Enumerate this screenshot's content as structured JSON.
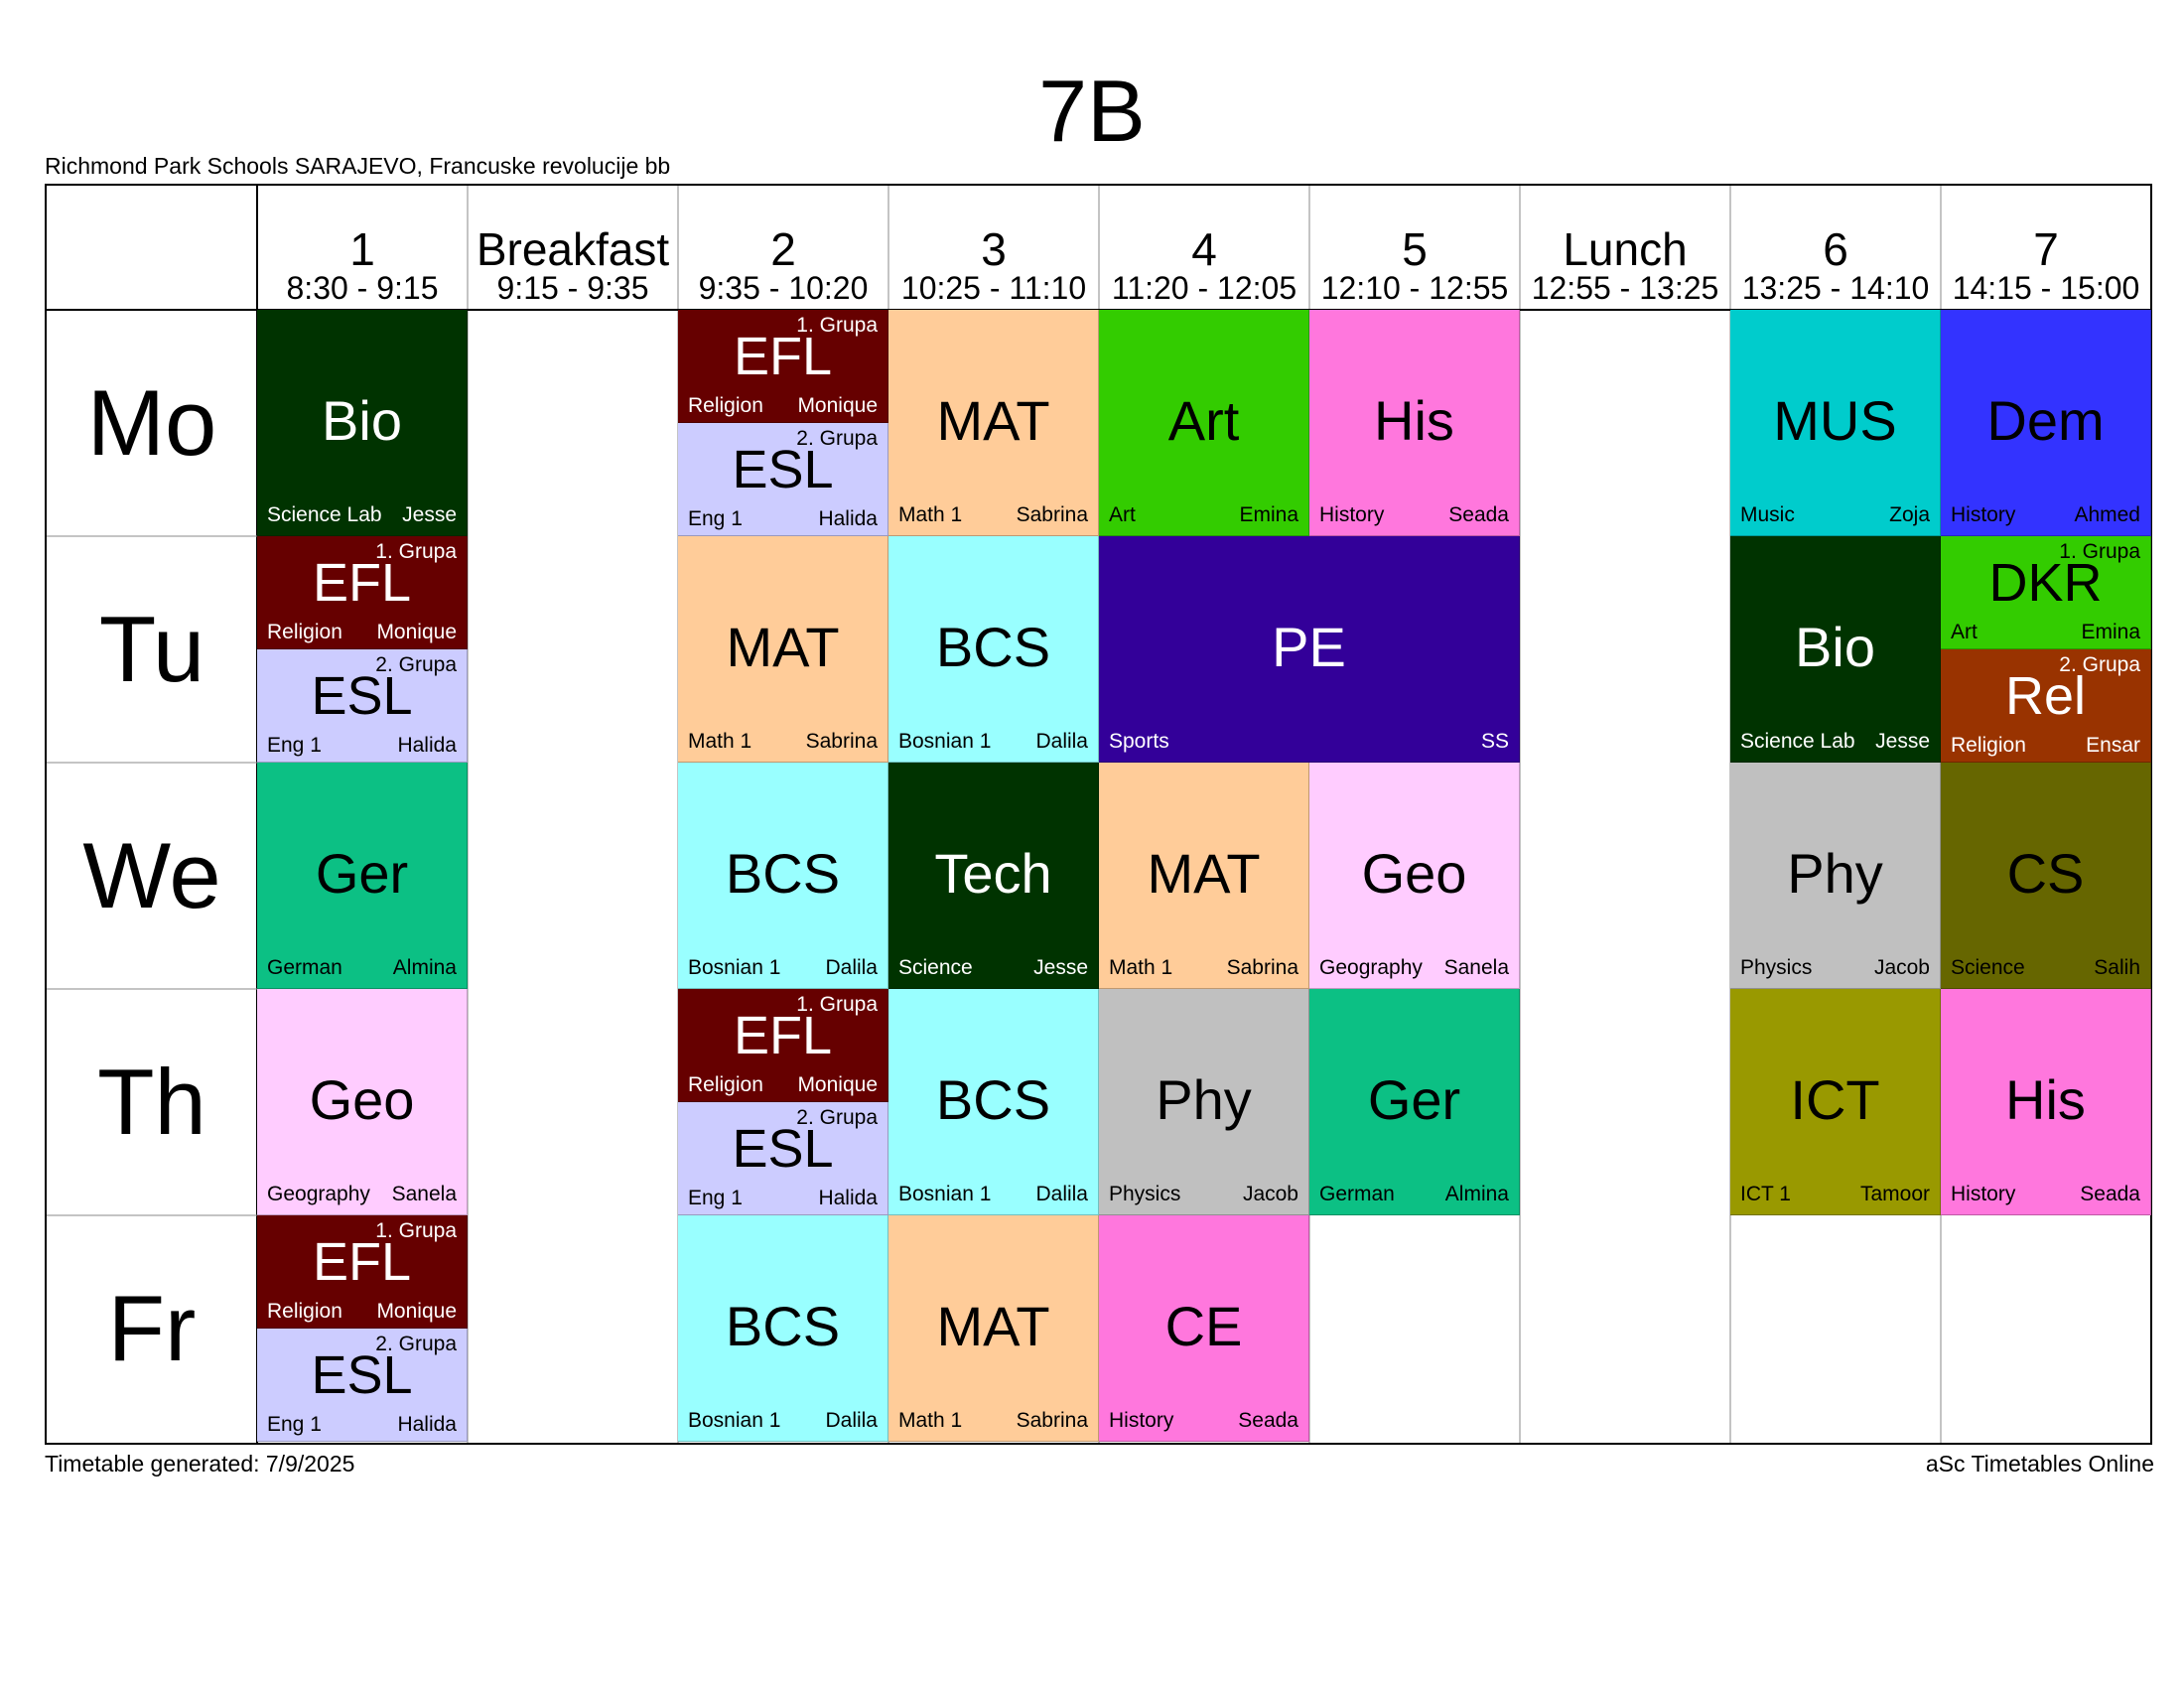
{
  "title": "7B",
  "school": "Richmond Park Schools SARAJEVO, Francuske revolucije bb",
  "footer": {
    "generated": "Timetable generated: 7/9/2025",
    "brand": "aSc Timetables Online"
  },
  "columns": [
    {
      "label": "1",
      "time": "8:30 - 9:15"
    },
    {
      "label": "Breakfast",
      "time": "9:15 - 9:35"
    },
    {
      "label": "2",
      "time": "9:35 - 10:20"
    },
    {
      "label": "3",
      "time": "10:25 - 11:10"
    },
    {
      "label": "4",
      "time": "11:20 - 12:05"
    },
    {
      "label": "5",
      "time": "12:10 - 12:55"
    },
    {
      "label": "Lunch",
      "time": "12:55 - 13:25"
    },
    {
      "label": "6",
      "time": "13:25 - 14:10"
    },
    {
      "label": "7",
      "time": "14:15 - 15:00"
    }
  ],
  "days": [
    "Mo",
    "Tu",
    "We",
    "Th",
    "Fr"
  ],
  "lessons": [
    {
      "day": 0,
      "col": 0,
      "span": 1,
      "half": null,
      "subject": "Bio",
      "room": "Science Lab",
      "teacher": "Jesse",
      "group": "",
      "color": "#003300",
      "text": "#ffffff"
    },
    {
      "day": 0,
      "col": 2,
      "span": 1,
      "half": "top",
      "subject": "EFL",
      "room": "Religion",
      "teacher": "Monique",
      "group": "1. Grupa",
      "color": "#660000",
      "text": "#ffffff"
    },
    {
      "day": 0,
      "col": 2,
      "span": 1,
      "half": "bottom",
      "subject": "ESL",
      "room": "Eng 1",
      "teacher": "Halida",
      "group": "2. Grupa",
      "color": "#ccccff",
      "text": "#000000"
    },
    {
      "day": 0,
      "col": 3,
      "span": 1,
      "half": null,
      "subject": "MAT",
      "room": "Math 1",
      "teacher": "Sabrina",
      "group": "",
      "color": "#ffcc99",
      "text": "#000000"
    },
    {
      "day": 0,
      "col": 4,
      "span": 1,
      "half": null,
      "subject": "Art",
      "room": "Art",
      "teacher": "Emina",
      "group": "",
      "color": "#33cc00",
      "text": "#000000"
    },
    {
      "day": 0,
      "col": 5,
      "span": 1,
      "half": null,
      "subject": "His",
      "room": "History",
      "teacher": "Seada",
      "group": "",
      "color": "#ff77dd",
      "text": "#000000"
    },
    {
      "day": 0,
      "col": 7,
      "span": 1,
      "half": null,
      "subject": "MUS",
      "room": "Music",
      "teacher": "Zoja",
      "group": "",
      "color": "#00cccc",
      "text": "#000000"
    },
    {
      "day": 0,
      "col": 8,
      "span": 1,
      "half": null,
      "subject": "Dem",
      "room": "History",
      "teacher": "Ahmed",
      "group": "",
      "color": "#3333ff",
      "text": "#000000"
    },
    {
      "day": 1,
      "col": 0,
      "span": 1,
      "half": "top",
      "subject": "EFL",
      "room": "Religion",
      "teacher": "Monique",
      "group": "1. Grupa",
      "color": "#660000",
      "text": "#ffffff"
    },
    {
      "day": 1,
      "col": 0,
      "span": 1,
      "half": "bottom",
      "subject": "ESL",
      "room": "Eng 1",
      "teacher": "Halida",
      "group": "2. Grupa",
      "color": "#ccccff",
      "text": "#000000"
    },
    {
      "day": 1,
      "col": 2,
      "span": 1,
      "half": null,
      "subject": "MAT",
      "room": "Math 1",
      "teacher": "Sabrina",
      "group": "",
      "color": "#ffcc99",
      "text": "#000000"
    },
    {
      "day": 1,
      "col": 3,
      "span": 1,
      "half": null,
      "subject": "BCS",
      "room": "Bosnian 1",
      "teacher": "Dalila",
      "group": "",
      "color": "#99ffff",
      "text": "#000000"
    },
    {
      "day": 1,
      "col": 4,
      "span": 2,
      "half": null,
      "subject": "PE",
      "room": "Sports",
      "teacher": "SS",
      "group": "",
      "color": "#330099",
      "text": "#ffffff"
    },
    {
      "day": 1,
      "col": 7,
      "span": 1,
      "half": null,
      "subject": "Bio",
      "room": "Science Lab",
      "teacher": "Jesse",
      "group": "",
      "color": "#003300",
      "text": "#ffffff"
    },
    {
      "day": 1,
      "col": 8,
      "span": 1,
      "half": "top",
      "subject": "DKR",
      "room": "Art",
      "teacher": "Emina",
      "group": "1. Grupa",
      "color": "#33cc00",
      "text": "#000000"
    },
    {
      "day": 1,
      "col": 8,
      "span": 1,
      "half": "bottom",
      "subject": "Rel",
      "room": "Religion",
      "teacher": "Ensar",
      "group": "2. Grupa",
      "color": "#993300",
      "text": "#ffffff"
    },
    {
      "day": 2,
      "col": 0,
      "span": 1,
      "half": null,
      "subject": "Ger",
      "room": "German",
      "teacher": "Almina",
      "group": "",
      "color": "#0cc084",
      "text": "#000000"
    },
    {
      "day": 2,
      "col": 2,
      "span": 1,
      "half": null,
      "subject": "BCS",
      "room": "Bosnian 1",
      "teacher": "Dalila",
      "group": "",
      "color": "#99ffff",
      "text": "#000000"
    },
    {
      "day": 2,
      "col": 3,
      "span": 1,
      "half": null,
      "subject": "Tech",
      "room": "Science",
      "teacher": "Jesse",
      "group": "",
      "color": "#003300",
      "text": "#ffffff"
    },
    {
      "day": 2,
      "col": 4,
      "span": 1,
      "half": null,
      "subject": "MAT",
      "room": "Math 1",
      "teacher": "Sabrina",
      "group": "",
      "color": "#ffcc99",
      "text": "#000000"
    },
    {
      "day": 2,
      "col": 5,
      "span": 1,
      "half": null,
      "subject": "Geo",
      "room": "Geography",
      "teacher": "Sanela",
      "group": "",
      "color": "#ffccff",
      "text": "#000000"
    },
    {
      "day": 2,
      "col": 7,
      "span": 1,
      "half": null,
      "subject": "Phy",
      "room": "Physics",
      "teacher": "Jacob",
      "group": "",
      "color": "#c0c0c0",
      "text": "#000000"
    },
    {
      "day": 2,
      "col": 8,
      "span": 1,
      "half": null,
      "subject": "CS",
      "room": "Science",
      "teacher": "Salih",
      "group": "",
      "color": "#666600",
      "text": "#000000"
    },
    {
      "day": 3,
      "col": 0,
      "span": 1,
      "half": null,
      "subject": "Geo",
      "room": "Geography",
      "teacher": "Sanela",
      "group": "",
      "color": "#ffccff",
      "text": "#000000"
    },
    {
      "day": 3,
      "col": 2,
      "span": 1,
      "half": "top",
      "subject": "EFL",
      "room": "Religion",
      "teacher": "Monique",
      "group": "1. Grupa",
      "color": "#660000",
      "text": "#ffffff"
    },
    {
      "day": 3,
      "col": 2,
      "span": 1,
      "half": "bottom",
      "subject": "ESL",
      "room": "Eng 1",
      "teacher": "Halida",
      "group": "2. Grupa",
      "color": "#ccccff",
      "text": "#000000"
    },
    {
      "day": 3,
      "col": 3,
      "span": 1,
      "half": null,
      "subject": "BCS",
      "room": "Bosnian 1",
      "teacher": "Dalila",
      "group": "",
      "color": "#99ffff",
      "text": "#000000"
    },
    {
      "day": 3,
      "col": 4,
      "span": 1,
      "half": null,
      "subject": "Phy",
      "room": "Physics",
      "teacher": "Jacob",
      "group": "",
      "color": "#c0c0c0",
      "text": "#000000"
    },
    {
      "day": 3,
      "col": 5,
      "span": 1,
      "half": null,
      "subject": "Ger",
      "room": "German",
      "teacher": "Almina",
      "group": "",
      "color": "#0cc084",
      "text": "#000000"
    },
    {
      "day": 3,
      "col": 7,
      "span": 1,
      "half": null,
      "subject": "ICT",
      "room": "ICT 1",
      "teacher": "Tamoor",
      "group": "",
      "color": "#999900",
      "text": "#000000"
    },
    {
      "day": 3,
      "col": 8,
      "span": 1,
      "half": null,
      "subject": "His",
      "room": "History",
      "teacher": "Seada",
      "group": "",
      "color": "#ff77dd",
      "text": "#000000"
    },
    {
      "day": 4,
      "col": 0,
      "span": 1,
      "half": "top",
      "subject": "EFL",
      "room": "Religion",
      "teacher": "Monique",
      "group": "1. Grupa",
      "color": "#660000",
      "text": "#ffffff"
    },
    {
      "day": 4,
      "col": 0,
      "span": 1,
      "half": "bottom",
      "subject": "ESL",
      "room": "Eng 1",
      "teacher": "Halida",
      "group": "2. Grupa",
      "color": "#ccccff",
      "text": "#000000"
    },
    {
      "day": 4,
      "col": 2,
      "span": 1,
      "half": null,
      "subject": "BCS",
      "room": "Bosnian 1",
      "teacher": "Dalila",
      "group": "",
      "color": "#99ffff",
      "text": "#000000"
    },
    {
      "day": 4,
      "col": 3,
      "span": 1,
      "half": null,
      "subject": "MAT",
      "room": "Math 1",
      "teacher": "Sabrina",
      "group": "",
      "color": "#ffcc99",
      "text": "#000000"
    },
    {
      "day": 4,
      "col": 4,
      "span": 1,
      "half": null,
      "subject": "CE",
      "room": "History",
      "teacher": "Seada",
      "group": "",
      "color": "#ff77dd",
      "text": "#000000"
    }
  ]
}
